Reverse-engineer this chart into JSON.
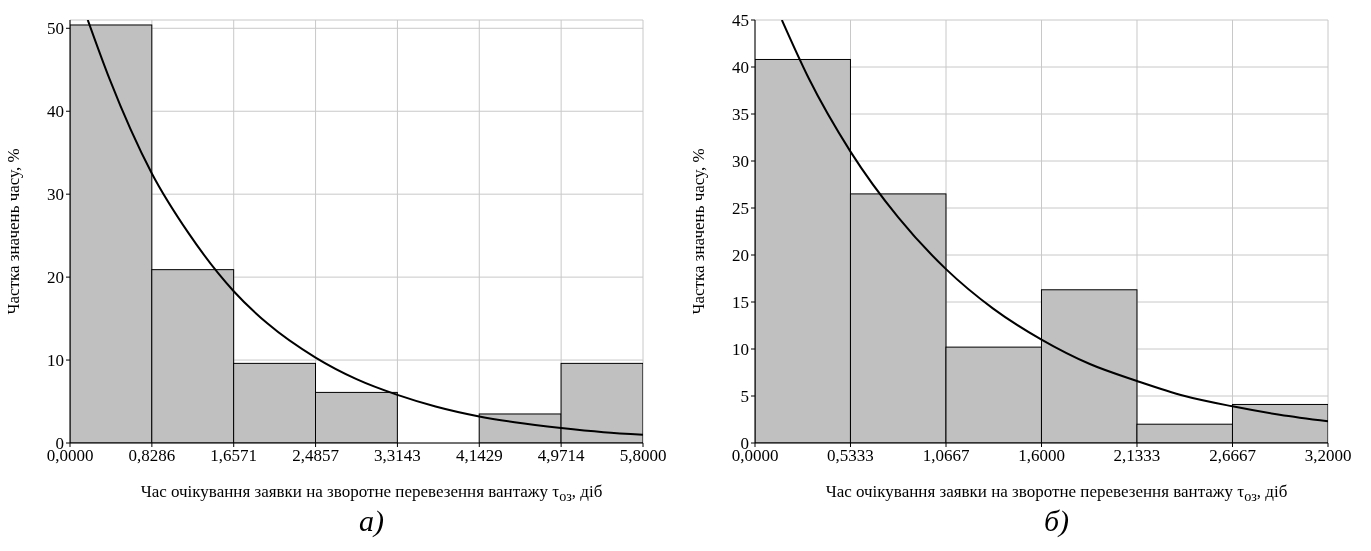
{
  "chart_data": [
    {
      "type": "histogram",
      "bins": [
        0,
        0.8286,
        1.6571,
        2.4857,
        3.3143,
        4.1429,
        4.9714,
        5.8
      ],
      "values": [
        50.4,
        20.9,
        9.6,
        6.1,
        0,
        3.5,
        9.6
      ],
      "color": "#c0c0c0",
      "series": [
        {
          "type": "line",
          "color": "#000000",
          "x": [
            0.18,
            0.4,
            0.8286,
            1.2,
            1.6571,
            2.0,
            2.4857,
            2.9,
            3.3143,
            3.7,
            4.1429,
            4.5,
            4.9714,
            5.4,
            5.8
          ],
          "values": [
            51.0,
            43.9,
            32.5,
            25.3,
            18.3,
            14.4,
            10.3,
            7.7,
            5.8,
            4.4,
            3.2,
            2.5,
            1.8,
            1.3,
            1.0
          ]
        }
      ],
      "xlim": [
        0,
        5.8
      ],
      "xticks": [
        {
          "value": 0,
          "label": "0,0000"
        },
        {
          "value": 0.8286,
          "label": "0,8286"
        },
        {
          "value": 1.6571,
          "label": "1,6571"
        },
        {
          "value": 2.4857,
          "label": "2,4857"
        },
        {
          "value": 3.3143,
          "label": "3,3143"
        },
        {
          "value": 4.1429,
          "label": "4,1429"
        },
        {
          "value": 4.9714,
          "label": "4,9714"
        },
        {
          "value": 5.8,
          "label": "5,8000"
        }
      ],
      "ylim": [
        0,
        51
      ],
      "yticks": [
        0,
        10,
        20,
        30,
        40,
        50
      ],
      "grid": true,
      "xlabel": "Час очікування заявки на зворотне перевезення вантажу τ$_{оз}$, діб",
      "ylabel": "Частка значень часу, %",
      "annotations": [
        "а)"
      ]
    },
    {
      "type": "histogram",
      "bins": [
        0,
        0.5333,
        1.0667,
        1.6,
        2.1333,
        2.6667,
        3.2
      ],
      "values": [
        40.8,
        26.5,
        10.2,
        16.3,
        2.0,
        4.1
      ],
      "color": "#c0c0c0",
      "series": [
        {
          "type": "line",
          "color": "#000000",
          "x": [
            0.15,
            0.3,
            0.5333,
            0.8,
            1.0667,
            1.33,
            1.6,
            1.87,
            2.1333,
            2.4,
            2.6667,
            2.93,
            3.2
          ],
          "values": [
            45.0,
            38.8,
            31.0,
            24.0,
            18.5,
            14.3,
            11.0,
            8.4,
            6.6,
            5.0,
            3.9,
            3.0,
            2.3
          ]
        }
      ],
      "xlim": [
        0,
        3.2
      ],
      "xticks": [
        {
          "value": 0,
          "label": "0,0000"
        },
        {
          "value": 0.5333,
          "label": "0,5333"
        },
        {
          "value": 1.0667,
          "label": "1,0667"
        },
        {
          "value": 1.6,
          "label": "1,6000"
        },
        {
          "value": 2.1333,
          "label": "2,1333"
        },
        {
          "value": 2.6667,
          "label": "2,6667"
        },
        {
          "value": 3.2,
          "label": "3,2000"
        }
      ],
      "ylim": [
        0,
        45
      ],
      "yticks": [
        0,
        5,
        10,
        15,
        20,
        25,
        30,
        35,
        40,
        45
      ],
      "grid": true,
      "xlabel": "Час очікування заявки на зворотне перевезення вантажу τ$_{оз}$, діб",
      "ylabel": "Частка значень часу, %",
      "annotations": [
        "б)"
      ]
    }
  ]
}
